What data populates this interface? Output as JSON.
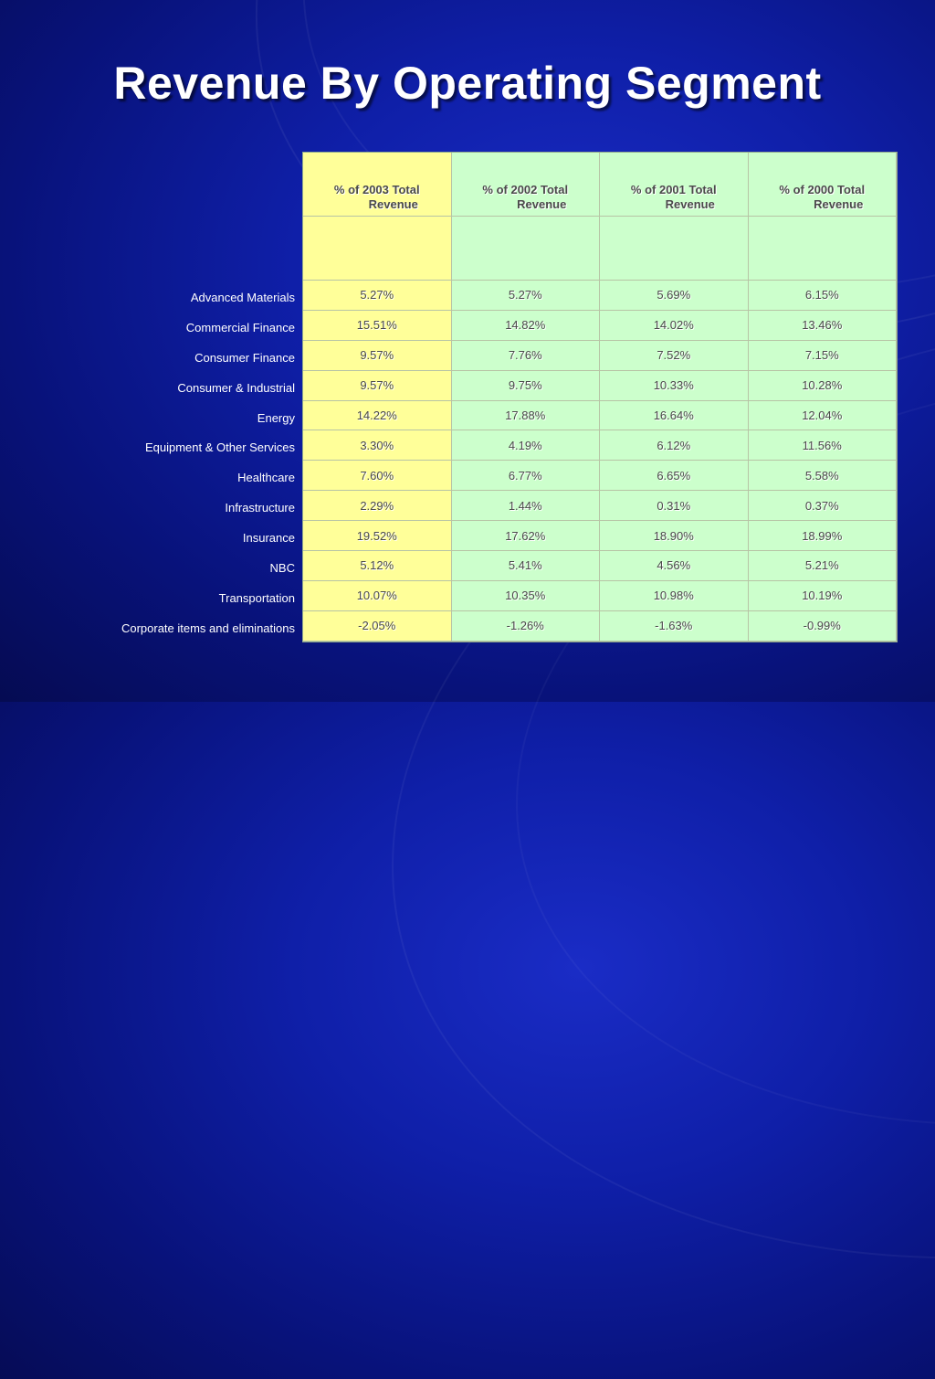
{
  "title": "Revenue By Operating Segment",
  "columns": [
    {
      "line1": "% of 2003 Total",
      "line2": "Revenue"
    },
    {
      "line1": "% of 2002 Total",
      "line2": "Revenue"
    },
    {
      "line1": "% of 2001 Total",
      "line2": "Revenue"
    },
    {
      "line1": "% of 2000 Total",
      "line2": "Revenue"
    }
  ],
  "rows": [
    {
      "label": "Advanced Materials",
      "values": [
        "5.27%",
        "5.27%",
        "5.69%",
        "6.15%"
      ]
    },
    {
      "label": "Commercial Finance",
      "values": [
        "15.51%",
        "14.82%",
        "14.02%",
        "13.46%"
      ]
    },
    {
      "label": "Consumer Finance",
      "values": [
        "9.57%",
        "7.76%",
        "7.52%",
        "7.15%"
      ]
    },
    {
      "label": "Consumer & Industrial",
      "values": [
        "9.57%",
        "9.75%",
        "10.33%",
        "10.28%"
      ]
    },
    {
      "label": "Energy",
      "values": [
        "14.22%",
        "17.88%",
        "16.64%",
        "12.04%"
      ]
    },
    {
      "label": "Equipment & Other Services",
      "values": [
        "3.30%",
        "4.19%",
        "6.12%",
        "11.56%"
      ]
    },
    {
      "label": "Healthcare",
      "values": [
        "7.60%",
        "6.77%",
        "6.65%",
        "5.58%"
      ]
    },
    {
      "label": "Infrastructure",
      "values": [
        "2.29%",
        "1.44%",
        "0.31%",
        "0.37%"
      ]
    },
    {
      "label": "Insurance",
      "values": [
        "19.52%",
        "17.62%",
        "18.90%",
        "18.99%"
      ]
    },
    {
      "label": "NBC",
      "values": [
        "5.12%",
        "5.41%",
        "4.56%",
        "5.21%"
      ]
    },
    {
      "label": "Transportation",
      "values": [
        "10.07%",
        "10.35%",
        "10.98%",
        "10.19%"
      ]
    },
    {
      "label": "Corporate items and eliminations",
      "values": [
        "-2.05%",
        "-1.26%",
        "-1.63%",
        "-0.99%"
      ]
    }
  ],
  "colors": {
    "background": "#0f1fa8",
    "yellow_column": "#ffff99",
    "green_column": "#ccffcc"
  }
}
